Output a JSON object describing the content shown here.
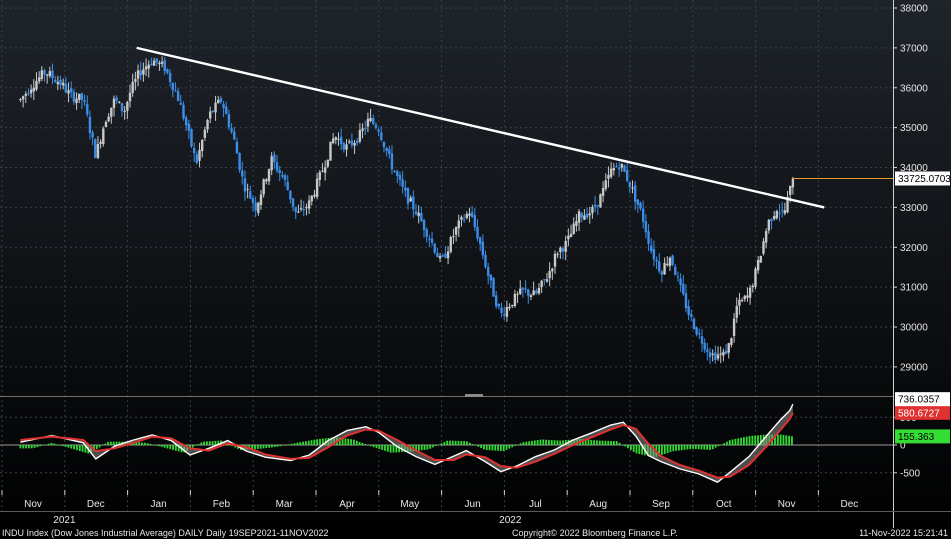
{
  "chart_data": [
    {
      "type": "candlestick",
      "y_ticks": [
        38000,
        37000,
        36000,
        35000,
        34000,
        33000,
        32000,
        31000,
        30000,
        29000
      ],
      "ylim": [
        28400,
        38200
      ],
      "grid": true,
      "month_labels": [
        "Nov",
        "Dec",
        "Jan",
        "Feb",
        "Mar",
        "Apr",
        "May",
        "Jun",
        "Jul",
        "Aug",
        "Sep",
        "Oct",
        "Nov",
        "Dec"
      ],
      "year_labels": [
        "2021",
        "2022"
      ],
      "last_value_label": "33725.0703",
      "last_value": 33725,
      "trendline": {
        "start": {
          "month_index": 1.65,
          "value": 37000
        },
        "end": {
          "month_index": 12.6,
          "value": 33000
        }
      },
      "close_path": [
        [
          -0.2,
          35700
        ],
        [
          0.0,
          36100
        ],
        [
          0.2,
          36400
        ],
        [
          0.45,
          36100
        ],
        [
          0.6,
          35800
        ],
        [
          0.8,
          35700
        ],
        [
          1.0,
          34300
        ],
        [
          1.15,
          35200
        ],
        [
          1.3,
          35700
        ],
        [
          1.45,
          35400
        ],
        [
          1.55,
          35900
        ],
        [
          1.7,
          36400
        ],
        [
          1.9,
          36700
        ],
        [
          2.1,
          36500
        ],
        [
          2.3,
          35800
        ],
        [
          2.45,
          35000
        ],
        [
          2.6,
          34100
        ],
        [
          2.8,
          35300
        ],
        [
          3.0,
          35700
        ],
        [
          3.2,
          34700
        ],
        [
          3.35,
          33600
        ],
        [
          3.55,
          33000
        ],
        [
          3.8,
          34200
        ],
        [
          4.0,
          33700
        ],
        [
          4.2,
          32800
        ],
        [
          4.4,
          33100
        ],
        [
          4.6,
          33900
        ],
        [
          4.8,
          34800
        ],
        [
          5.0,
          34500
        ],
        [
          5.2,
          34800
        ],
        [
          5.35,
          35200
        ],
        [
          5.5,
          35000
        ],
        [
          5.7,
          34100
        ],
        [
          5.9,
          33400
        ],
        [
          6.1,
          32900
        ],
        [
          6.3,
          32300
        ],
        [
          6.5,
          31600
        ],
        [
          6.75,
          32500
        ],
        [
          6.95,
          32900
        ],
        [
          7.1,
          32200
        ],
        [
          7.3,
          31000
        ],
        [
          7.45,
          30300
        ],
        [
          7.6,
          30600
        ],
        [
          7.8,
          30900
        ],
        [
          8.0,
          30800
        ],
        [
          8.2,
          31300
        ],
        [
          8.35,
          31900
        ],
        [
          8.5,
          32100
        ],
        [
          8.7,
          32800
        ],
        [
          8.9,
          32900
        ],
        [
          9.05,
          33300
        ],
        [
          9.2,
          33900
        ],
        [
          9.35,
          34100
        ],
        [
          9.5,
          33600
        ],
        [
          9.7,
          32800
        ],
        [
          9.85,
          31900
        ],
        [
          10.0,
          31400
        ],
        [
          10.15,
          31800
        ],
        [
          10.3,
          31000
        ],
        [
          10.45,
          30300
        ],
        [
          10.6,
          29800
        ],
        [
          10.8,
          29300
        ],
        [
          11.0,
          29300
        ],
        [
          11.1,
          29600
        ],
        [
          11.2,
          30500
        ],
        [
          11.4,
          30800
        ],
        [
          11.55,
          31600
        ],
        [
          11.7,
          32600
        ],
        [
          11.85,
          33000
        ],
        [
          11.95,
          32800
        ],
        [
          12.05,
          33400
        ],
        [
          12.1,
          33725
        ]
      ]
    },
    {
      "type": "line",
      "y_ticks": [
        500,
        0,
        -500
      ],
      "ylim": [
        -820,
        900
      ],
      "labels": [
        "736.0357",
        "580.6727",
        "155.363"
      ],
      "series": [
        {
          "name": "",
          "color": "#ffffff",
          "values": [
            [
              -0.2,
              50
            ],
            [
              0.3,
              170
            ],
            [
              0.8,
              40
            ],
            [
              1.0,
              -250
            ],
            [
              1.3,
              -20
            ],
            [
              1.6,
              90
            ],
            [
              1.9,
              180
            ],
            [
              2.2,
              80
            ],
            [
              2.5,
              -180
            ],
            [
              2.8,
              -60
            ],
            [
              3.1,
              80
            ],
            [
              3.4,
              -110
            ],
            [
              3.7,
              -220
            ],
            [
              4.1,
              -280
            ],
            [
              4.4,
              -180
            ],
            [
              4.7,
              80
            ],
            [
              5.0,
              260
            ],
            [
              5.3,
              330
            ],
            [
              5.5,
              230
            ],
            [
              5.8,
              -30
            ],
            [
              6.1,
              -210
            ],
            [
              6.4,
              -350
            ],
            [
              6.7,
              -200
            ],
            [
              6.9,
              -100
            ],
            [
              7.2,
              -300
            ],
            [
              7.45,
              -480
            ],
            [
              7.7,
              -380
            ],
            [
              8.0,
              -210
            ],
            [
              8.3,
              -90
            ],
            [
              8.6,
              90
            ],
            [
              8.9,
              220
            ],
            [
              9.2,
              360
            ],
            [
              9.4,
              410
            ],
            [
              9.6,
              160
            ],
            [
              9.8,
              -190
            ],
            [
              10.0,
              -300
            ],
            [
              10.3,
              -430
            ],
            [
              10.6,
              -520
            ],
            [
              10.9,
              -670
            ],
            [
              11.1,
              -490
            ],
            [
              11.4,
              -210
            ],
            [
              11.7,
              190
            ],
            [
              11.9,
              450
            ],
            [
              12.05,
              620
            ],
            [
              12.1,
              736
            ]
          ]
        },
        {
          "name": "",
          "color": "#e03131",
          "values": [
            [
              -0.2,
              90
            ],
            [
              0.3,
              150
            ],
            [
              0.8,
              90
            ],
            [
              1.0,
              -110
            ],
            [
              1.3,
              -60
            ],
            [
              1.6,
              40
            ],
            [
              1.9,
              150
            ],
            [
              2.2,
              120
            ],
            [
              2.5,
              -60
            ],
            [
              2.8,
              -100
            ],
            [
              3.1,
              30
            ],
            [
              3.4,
              -40
            ],
            [
              3.7,
              -170
            ],
            [
              4.1,
              -250
            ],
            [
              4.4,
              -230
            ],
            [
              4.7,
              -40
            ],
            [
              5.0,
              170
            ],
            [
              5.3,
              280
            ],
            [
              5.5,
              260
            ],
            [
              5.8,
              90
            ],
            [
              6.1,
              -100
            ],
            [
              6.4,
              -270
            ],
            [
              6.7,
              -270
            ],
            [
              6.9,
              -170
            ],
            [
              7.2,
              -220
            ],
            [
              7.45,
              -380
            ],
            [
              7.7,
              -410
            ],
            [
              8.0,
              -300
            ],
            [
              8.3,
              -160
            ],
            [
              8.6,
              0
            ],
            [
              8.9,
              140
            ],
            [
              9.2,
              280
            ],
            [
              9.4,
              360
            ],
            [
              9.6,
              290
            ],
            [
              9.8,
              20
            ],
            [
              10.0,
              -200
            ],
            [
              10.3,
              -360
            ],
            [
              10.6,
              -460
            ],
            [
              10.9,
              -590
            ],
            [
              11.1,
              -570
            ],
            [
              11.4,
              -360
            ],
            [
              11.7,
              0
            ],
            [
              11.9,
              270
            ],
            [
              12.05,
              470
            ],
            [
              12.1,
              580
            ]
          ]
        }
      ],
      "histogram": {
        "color": "#33dd33",
        "values": [
          [
            0.0,
            -60
          ],
          [
            0.3,
            40
          ],
          [
            0.6,
            -60
          ],
          [
            0.9,
            -160
          ],
          [
            1.2,
            60
          ],
          [
            1.5,
            60
          ],
          [
            1.8,
            40
          ],
          [
            2.1,
            -50
          ],
          [
            2.4,
            -140
          ],
          [
            2.7,
            60
          ],
          [
            3.0,
            80
          ],
          [
            3.3,
            -90
          ],
          [
            3.6,
            -70
          ],
          [
            3.9,
            -30
          ],
          [
            4.2,
            40
          ],
          [
            4.5,
            100
          ],
          [
            4.8,
            140
          ],
          [
            5.1,
            100
          ],
          [
            5.4,
            -30
          ],
          [
            5.7,
            -140
          ],
          [
            6.0,
            -120
          ],
          [
            6.3,
            -80
          ],
          [
            6.6,
            80
          ],
          [
            6.9,
            70
          ],
          [
            7.2,
            -90
          ],
          [
            7.5,
            -110
          ],
          [
            7.8,
            50
          ],
          [
            8.1,
            100
          ],
          [
            8.4,
            80
          ],
          [
            8.7,
            110
          ],
          [
            9.0,
            80
          ],
          [
            9.3,
            70
          ],
          [
            9.6,
            -150
          ],
          [
            9.9,
            -220
          ],
          [
            10.2,
            -110
          ],
          [
            10.5,
            -70
          ],
          [
            10.8,
            -90
          ],
          [
            11.1,
            90
          ],
          [
            11.4,
            160
          ],
          [
            11.7,
            190
          ],
          [
            11.9,
            190
          ],
          [
            12.1,
            155
          ]
        ]
      }
    }
  ],
  "footer": {
    "left": "INDU Index (Dow Jones Industrial Average) DAILY  Daily 19SEP2021-11NOV2022",
    "center": "Copyright© 2022 Bloomberg Finance L.P.",
    "right": "11-Nov-2022 15:21:41"
  },
  "colors": {
    "up": "#c8c8c8",
    "down": "#3a8ee8",
    "trendline": "#ffffff",
    "last_value_line": "#e89a2a",
    "grid": "#3a4048",
    "axis_text": "#e6e6e6",
    "background_top": "#1f242b",
    "background_bottom": "#000000"
  }
}
